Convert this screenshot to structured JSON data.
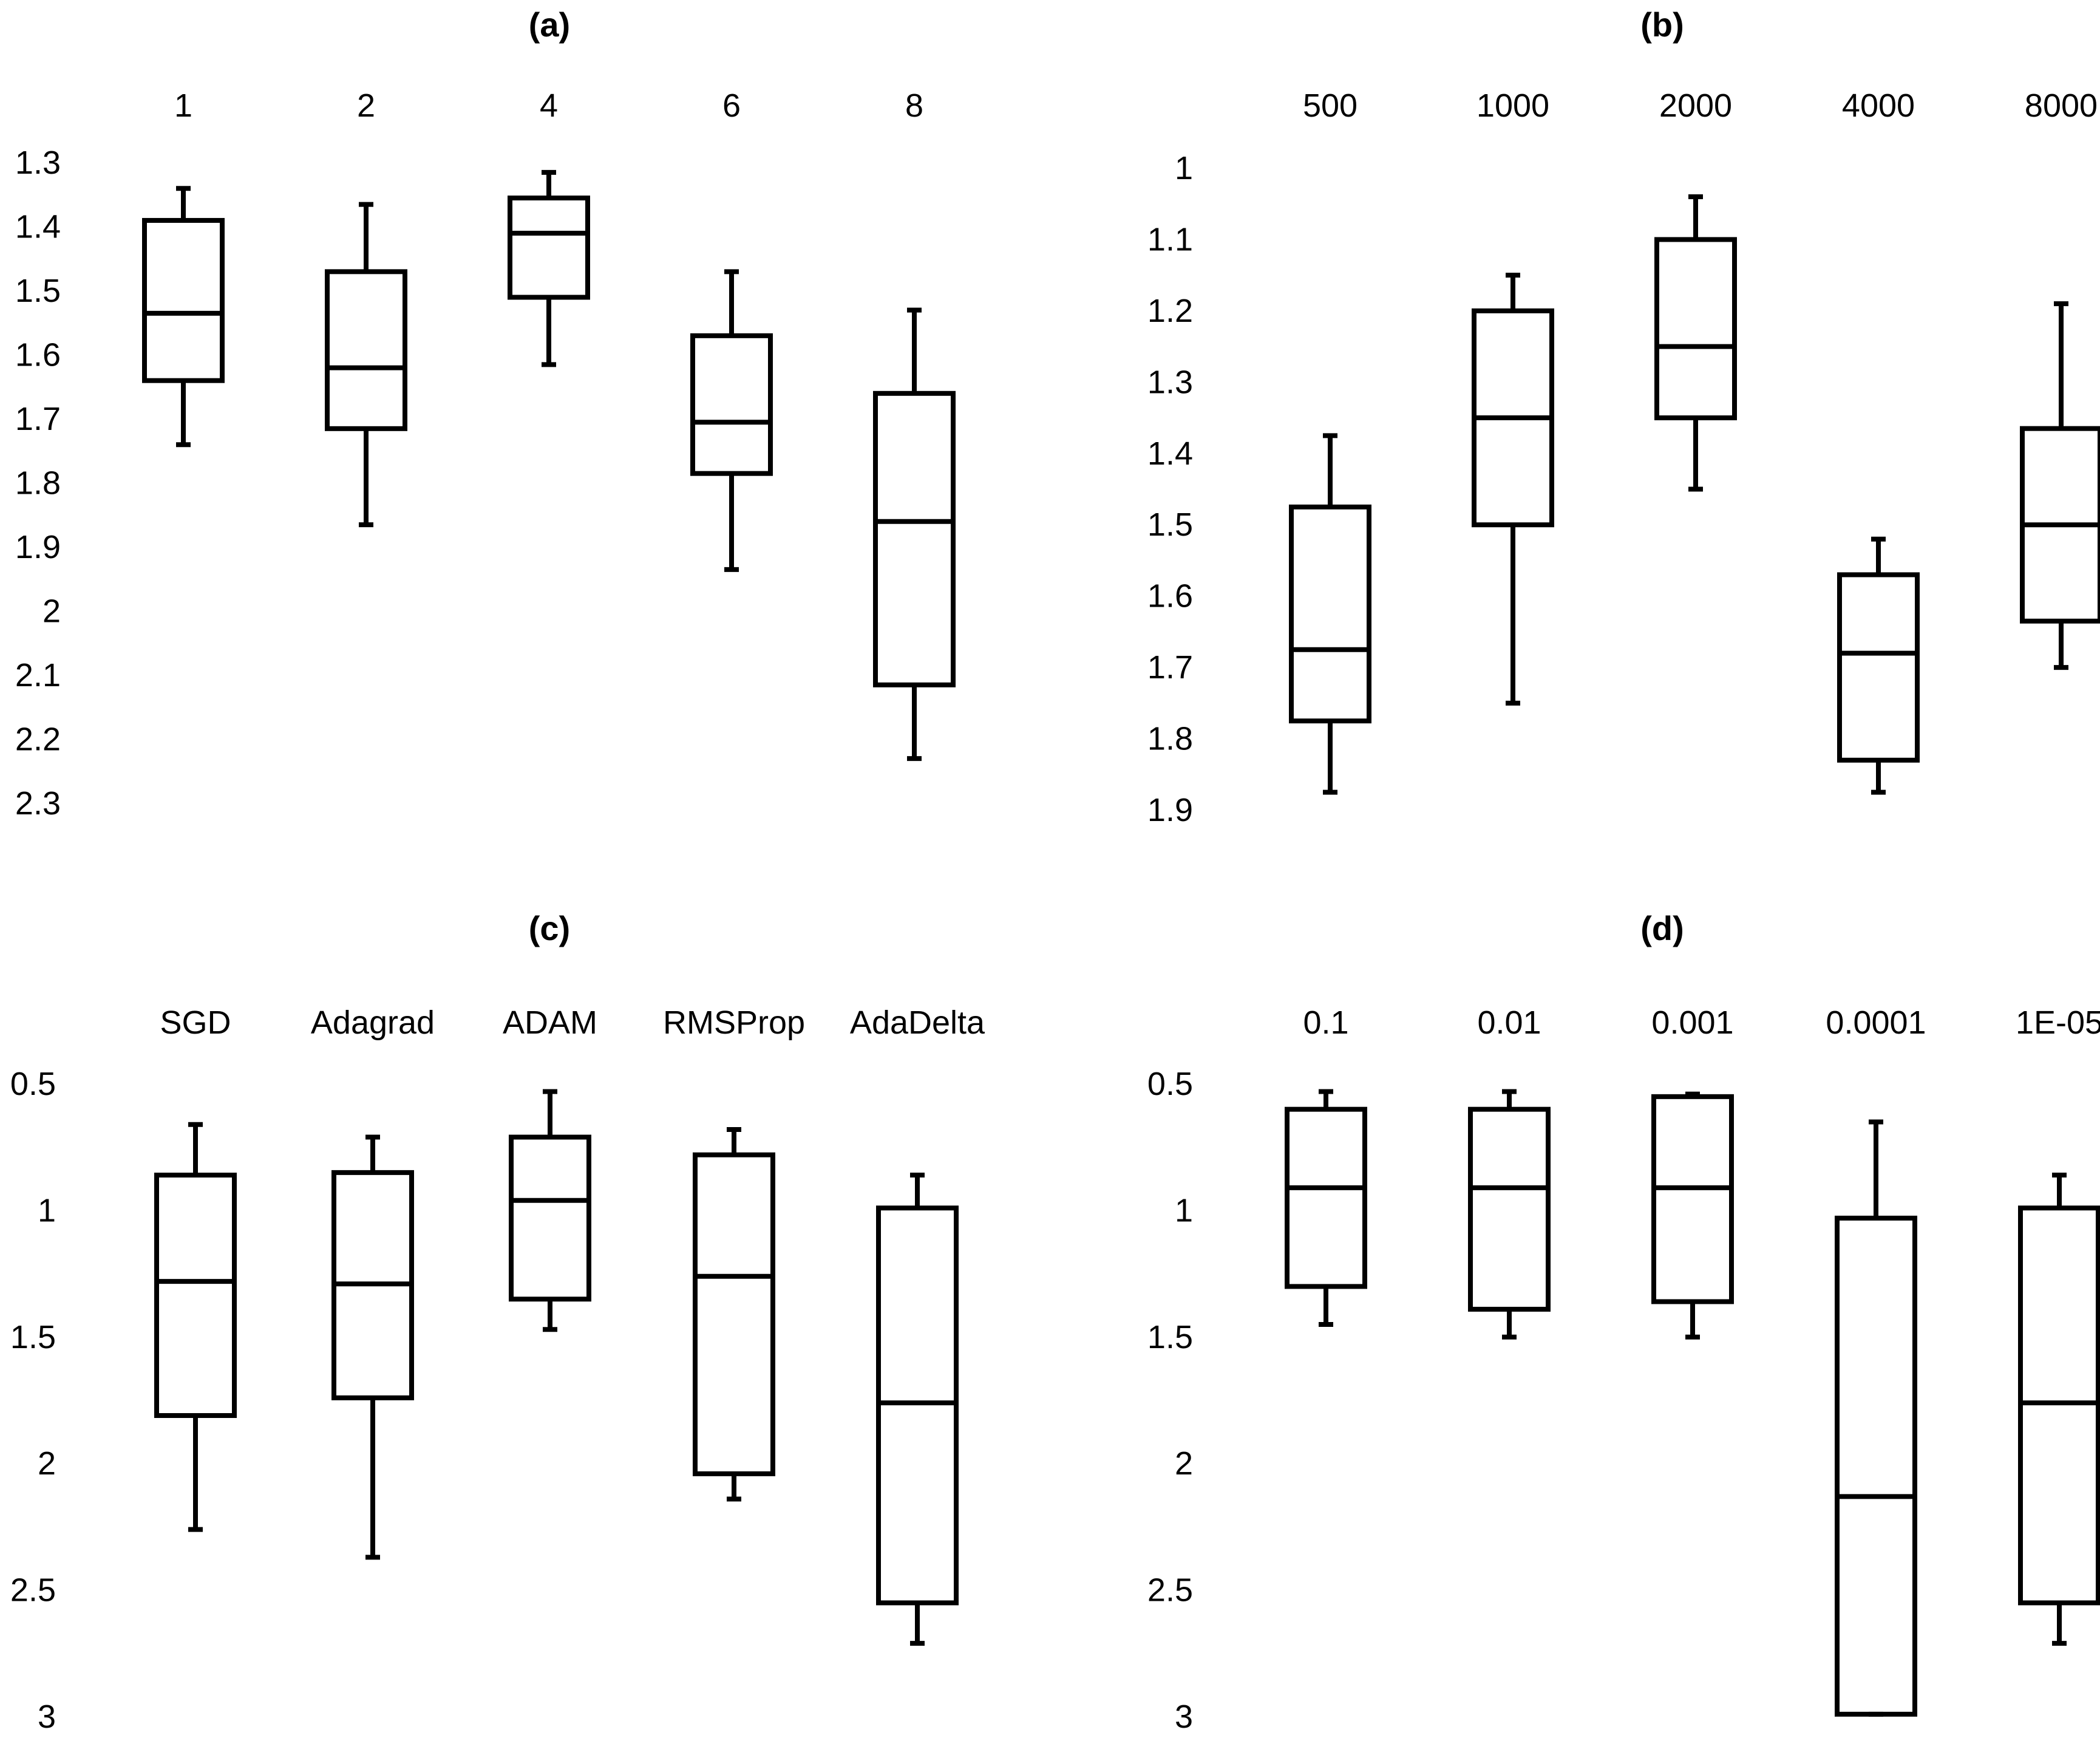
{
  "chart_data": [
    {
      "type": "box",
      "title": "(a)",
      "categories": [
        "1",
        "2",
        "4",
        "6",
        "8"
      ],
      "y_ticks": [
        "1.3",
        "1.4",
        "1.5",
        "1.6",
        "1.7",
        "1.8",
        "1.9",
        "2",
        "2.1",
        "2.2",
        "2.3"
      ],
      "ylim": [
        1.3,
        2.3
      ],
      "y_inverted": true,
      "boxes": [
        {
          "whisker_low": 1.34,
          "q1": 1.39,
          "median": 1.535,
          "q3": 1.64,
          "whisker_high": 1.74
        },
        {
          "whisker_low": 1.365,
          "q1": 1.47,
          "median": 1.62,
          "q3": 1.715,
          "whisker_high": 1.865
        },
        {
          "whisker_low": 1.315,
          "q1": 1.355,
          "median": 1.41,
          "q3": 1.51,
          "whisker_high": 1.615
        },
        {
          "whisker_low": 1.47,
          "q1": 1.57,
          "median": 1.705,
          "q3": 1.785,
          "whisker_high": 1.935
        },
        {
          "whisker_low": 1.53,
          "q1": 1.66,
          "median": 1.86,
          "q3": 2.115,
          "whisker_high": 2.23
        }
      ]
    },
    {
      "type": "box",
      "title": "(b)",
      "categories": [
        "500",
        "1000",
        "2000",
        "4000",
        "8000"
      ],
      "y_ticks": [
        "1",
        "1.1",
        "1.2",
        "1.3",
        "1.4",
        "1.5",
        "1.6",
        "1.7",
        "1.8",
        "1.9"
      ],
      "ylim": [
        1.0,
        1.9
      ],
      "y_inverted": true,
      "boxes": [
        {
          "whisker_low": 1.375,
          "q1": 1.475,
          "median": 1.675,
          "q3": 1.775,
          "whisker_high": 1.875
        },
        {
          "whisker_low": 1.15,
          "q1": 1.2,
          "median": 1.35,
          "q3": 1.5,
          "whisker_high": 1.75
        },
        {
          "whisker_low": 1.04,
          "q1": 1.1,
          "median": 1.25,
          "q3": 1.35,
          "whisker_high": 1.45
        },
        {
          "whisker_low": 1.52,
          "q1": 1.57,
          "median": 1.68,
          "q3": 1.83,
          "whisker_high": 1.875
        },
        {
          "whisker_low": 1.19,
          "q1": 1.365,
          "median": 1.5,
          "q3": 1.635,
          "whisker_high": 1.7
        }
      ]
    },
    {
      "type": "box",
      "title": "(c)",
      "categories": [
        "SGD",
        "Adagrad",
        "ADAM",
        "RMSProp",
        "AdaDelta"
      ],
      "y_ticks": [
        "0.5",
        "1",
        "1.5",
        "2",
        "2.5",
        "3"
      ],
      "ylim": [
        0.5,
        3.0
      ],
      "y_inverted": true,
      "boxes": [
        {
          "whisker_low": 0.66,
          "q1": 0.86,
          "median": 1.28,
          "q3": 1.81,
          "whisker_high": 2.26
        },
        {
          "whisker_low": 0.71,
          "q1": 0.85,
          "median": 1.29,
          "q3": 1.74,
          "whisker_high": 2.37
        },
        {
          "whisker_low": 0.53,
          "q1": 0.71,
          "median": 0.96,
          "q3": 1.35,
          "whisker_high": 1.47
        },
        {
          "whisker_low": 0.68,
          "q1": 0.78,
          "median": 1.26,
          "q3": 2.04,
          "whisker_high": 2.14
        },
        {
          "whisker_low": 0.86,
          "q1": 0.99,
          "median": 1.76,
          "q3": 2.55,
          "whisker_high": 2.71
        }
      ]
    },
    {
      "type": "box",
      "title": "(d)",
      "categories": [
        "0.1",
        "0.01",
        "0.001",
        "0.0001",
        "1E-05"
      ],
      "y_ticks": [
        "0.5",
        "1",
        "1.5",
        "2",
        "2.5",
        "3"
      ],
      "ylim": [
        0.5,
        3.0
      ],
      "y_inverted": true,
      "boxes": [
        {
          "whisker_low": 0.53,
          "q1": 0.6,
          "median": 0.91,
          "q3": 1.3,
          "whisker_high": 1.45
        },
        {
          "whisker_low": 0.53,
          "q1": 0.6,
          "median": 0.91,
          "q3": 1.39,
          "whisker_high": 1.5
        },
        {
          "whisker_low": 0.54,
          "q1": 0.55,
          "median": 0.91,
          "q3": 1.36,
          "whisker_high": 1.5
        },
        {
          "whisker_low": 0.65,
          "q1": 1.03,
          "median": 2.13,
          "q3": 2.99,
          "whisker_high": 2.99
        },
        {
          "whisker_low": 0.86,
          "q1": 0.99,
          "median": 1.76,
          "q3": 2.55,
          "whisker_high": 2.71
        }
      ]
    }
  ]
}
